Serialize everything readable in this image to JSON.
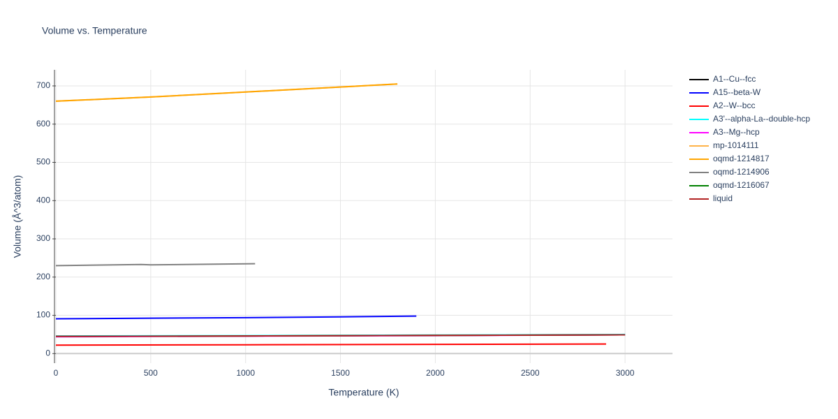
{
  "chart_data": {
    "type": "line",
    "title": "Volume vs. Temperature",
    "x_label": "Temperature (K)",
    "y_label": "Volume (Å^3/atom)",
    "xlim": [
      0,
      3250
    ],
    "ylim": [
      -25,
      742
    ],
    "xticks": [
      0,
      500,
      1000,
      1500,
      2000,
      2500,
      3000
    ],
    "yticks": [
      0,
      100,
      200,
      300,
      400,
      500,
      600,
      700
    ],
    "grid": true,
    "series": [
      {
        "name": "A1--Cu--fcc",
        "color": "#000000",
        "x": [
          0,
          1000,
          2000,
          3000
        ],
        "values": [
          45,
          46,
          47.5,
          49
        ]
      },
      {
        "name": "A15--beta-W",
        "color": "#0000ff",
        "x": [
          0,
          500,
          1000,
          1500,
          1900
        ],
        "values": [
          91,
          92.5,
          94,
          96,
          98
        ]
      },
      {
        "name": "A2--W--bcc",
        "color": "#ff0000",
        "x": [
          0,
          1000,
          2000,
          2900
        ],
        "values": [
          22,
          23,
          24,
          25
        ]
      },
      {
        "name": "A3'--alpha-La--double-hcp",
        "color": "#00ffff",
        "x": [
          0,
          1000,
          2000,
          3000
        ],
        "values": [
          46,
          47,
          48.5,
          50
        ]
      },
      {
        "name": "A3--Mg--hcp",
        "color": "#ff00ff",
        "x": [
          0,
          1000,
          2000,
          3000
        ],
        "values": [
          44,
          45.5,
          47,
          49
        ]
      },
      {
        "name": "mp-1014111",
        "color": "#ffb347",
        "x": [
          0,
          500,
          1000,
          1500,
          1800
        ],
        "values": [
          660,
          671,
          684,
          697,
          705
        ]
      },
      {
        "name": "oqmd-1214817",
        "color": "#ffa500",
        "x": [
          0,
          500,
          1000,
          1500,
          1800
        ],
        "values": [
          660,
          671,
          684,
          697,
          705
        ]
      },
      {
        "name": "oqmd-1214906",
        "color": "#808080",
        "x": [
          0,
          450,
          500,
          1050
        ],
        "values": [
          230,
          233,
          232,
          235
        ]
      },
      {
        "name": "oqmd-1216067",
        "color": "#008000",
        "x": [
          0,
          1000,
          2000,
          3000
        ],
        "values": [
          45,
          46,
          47.5,
          49
        ]
      },
      {
        "name": "liquid",
        "color": "#b22222",
        "x": [
          0,
          1000,
          2000,
          3000
        ],
        "values": [
          45,
          46,
          47.5,
          49
        ]
      }
    ]
  }
}
